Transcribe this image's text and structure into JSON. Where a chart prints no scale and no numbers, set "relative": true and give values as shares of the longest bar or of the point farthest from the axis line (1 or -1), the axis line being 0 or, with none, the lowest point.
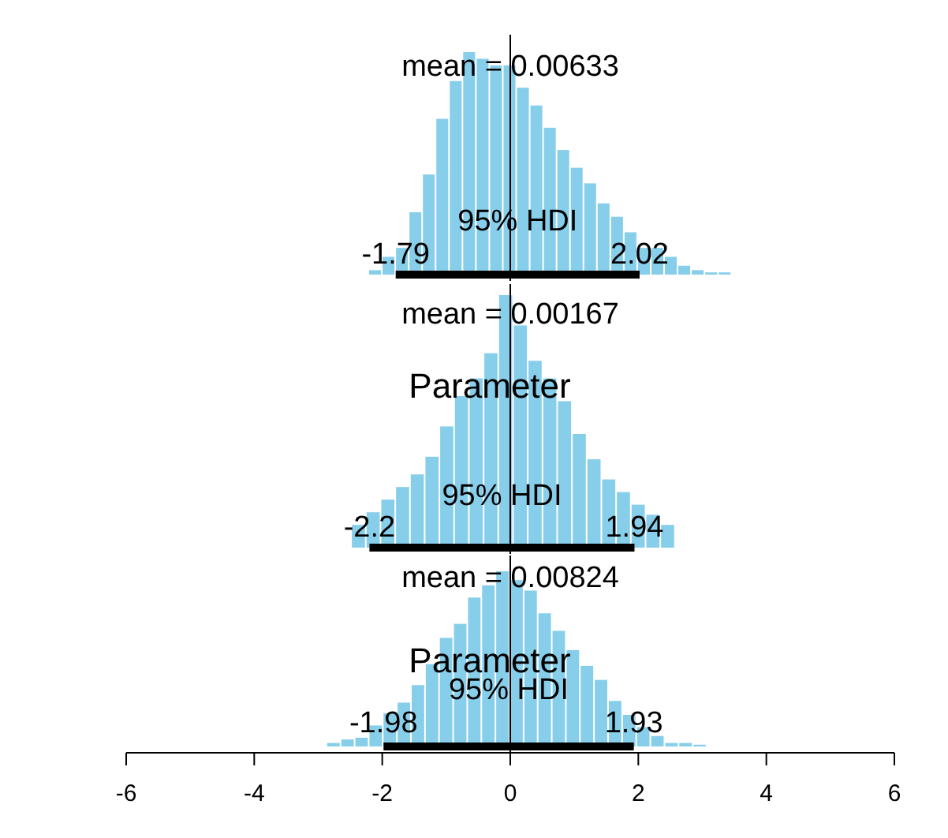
{
  "chart_data": [
    {
      "type": "bar",
      "relative": true,
      "color": "#87ceeb",
      "xlim": [
        -6,
        6
      ],
      "tick_labels": false,
      "x": [
        -2.1,
        -1.89,
        -1.68,
        -1.47,
        -1.26,
        -1.05,
        -0.84,
        -0.63,
        -0.42,
        -0.21,
        0,
        0.21,
        0.42,
        0.63,
        0.84,
        1.05,
        1.26,
        1.47,
        1.68,
        1.89,
        2.1,
        2.31,
        2.52,
        2.73,
        2.94,
        3.15,
        3.36
      ],
      "values": [
        0.02,
        0.08,
        0.12,
        0.28,
        0.45,
        0.7,
        0.87,
        1,
        0.97,
        0.94,
        0.94,
        0.84,
        0.76,
        0.66,
        0.56,
        0.48,
        0.41,
        0.32,
        0.26,
        0.19,
        0.12,
        0.12,
        0.08,
        0.04,
        0.02,
        0.01,
        0.01
      ],
      "ref_lines": [
        {
          "axis": "x",
          "value": 0
        }
      ],
      "annotations": [
        "mean = 0.00633",
        "95% HDI",
        {
          "text": "-1.79",
          "x": -1.79,
          "y": 0
        },
        {
          "text": "2.02",
          "x": 2.02,
          "y": 0
        }
      ]
    },
    {
      "type": "bar",
      "relative": true,
      "color": "#87ceeb",
      "xlim": [
        -6,
        6
      ],
      "tick_labels": false,
      "xlabel": "Parameter",
      "x": [
        -2.36,
        -2.13,
        -1.9,
        -1.67,
        -1.44,
        -1.21,
        -0.98,
        -0.75,
        -0.52,
        -0.29,
        -0.06,
        0.17,
        0.4,
        0.63,
        0.86,
        1.09,
        1.32,
        1.55,
        1.78,
        2.01,
        2.24,
        2.47
      ],
      "values": [
        0.09,
        0.14,
        0.19,
        0.24,
        0.29,
        0.36,
        0.48,
        0.6,
        0.67,
        0.77,
        1,
        0.88,
        0.74,
        0.67,
        0.58,
        0.45,
        0.35,
        0.27,
        0.22,
        0.17,
        0.13,
        0.09
      ],
      "ref_lines": [
        {
          "axis": "x",
          "value": 0
        }
      ],
      "annotations": [
        "mean = 0.00167",
        "95% HDI",
        {
          "text": "-2.2",
          "x": -2.2,
          "y": 0
        },
        {
          "text": "1.94",
          "x": 1.94,
          "y": 0
        }
      ]
    },
    {
      "type": "bar",
      "relative": true,
      "color": "#87ceeb",
      "xlim": [
        -6,
        6
      ],
      "xticks": [
        -6,
        -4,
        -2,
        0,
        2,
        4,
        6
      ],
      "tick_labels": "x",
      "xlabel": "Parameter",
      "x": [
        -2.75,
        -2.53,
        -2.31,
        -2.09,
        -1.87,
        -1.65,
        -1.43,
        -1.21,
        -0.99,
        -0.77,
        -0.55,
        -0.33,
        -0.11,
        0.11,
        0.33,
        0.55,
        0.77,
        0.99,
        1.21,
        1.43,
        1.65,
        1.87,
        2.09,
        2.31,
        2.53,
        2.75,
        2.97
      ],
      "values": [
        0.02,
        0.04,
        0.05,
        0.12,
        0.19,
        0.25,
        0.35,
        0.47,
        0.62,
        0.7,
        0.85,
        0.92,
        1,
        0.95,
        0.89,
        0.76,
        0.66,
        0.55,
        0.46,
        0.38,
        0.26,
        0.18,
        0.11,
        0.06,
        0.02,
        0.02,
        0.01
      ],
      "ref_lines": [
        {
          "axis": "x",
          "value": 0
        }
      ],
      "annotations": [
        "mean = 0.00824",
        "95% HDI",
        {
          "text": "-1.98",
          "x": -1.98,
          "y": 0
        },
        {
          "text": "1.93",
          "x": 1.93,
          "y": 0
        }
      ]
    }
  ]
}
